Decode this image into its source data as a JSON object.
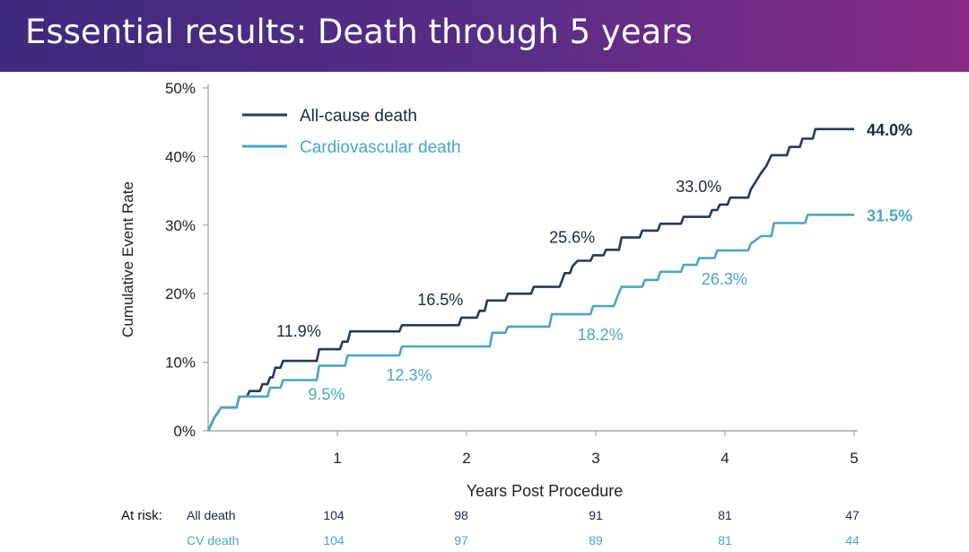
{
  "slide": {
    "title": "Essential results: Death through 5 years"
  },
  "chart_data": {
    "type": "line",
    "step": true,
    "xlabel": "Years Post Procedure",
    "ylabel": "Cumulative Event Rate",
    "xlim": [
      0,
      5
    ],
    "ylim": [
      0,
      50
    ],
    "x_ticks": [
      "1",
      "2",
      "3",
      "4",
      "5"
    ],
    "y_ticks": [
      "0%",
      "10%",
      "20%",
      "30%",
      "40%",
      "50%"
    ],
    "legend_position": "top-left",
    "series": [
      {
        "name": "All-cause death",
        "color": "#243a5e",
        "points": [
          [
            0,
            0
          ],
          [
            0.03,
            1.2
          ],
          [
            0.05,
            2.0
          ],
          [
            0.08,
            2.8
          ],
          [
            0.1,
            3.4
          ],
          [
            0.22,
            3.4
          ],
          [
            0.24,
            5.0
          ],
          [
            0.3,
            5.0
          ],
          [
            0.32,
            5.8
          ],
          [
            0.4,
            5.8
          ],
          [
            0.42,
            6.8
          ],
          [
            0.46,
            6.8
          ],
          [
            0.48,
            7.8
          ],
          [
            0.5,
            7.8
          ],
          [
            0.52,
            9.2
          ],
          [
            0.56,
            9.2
          ],
          [
            0.58,
            10.2
          ],
          [
            0.84,
            10.2
          ],
          [
            0.86,
            11.9
          ],
          [
            1.02,
            11.9
          ],
          [
            1.04,
            13.0
          ],
          [
            1.08,
            13.0
          ],
          [
            1.1,
            14.5
          ],
          [
            1.48,
            14.5
          ],
          [
            1.5,
            15.4
          ],
          [
            1.94,
            15.4
          ],
          [
            1.96,
            16.5
          ],
          [
            2.08,
            16.5
          ],
          [
            2.1,
            17.5
          ],
          [
            2.14,
            17.5
          ],
          [
            2.16,
            19.0
          ],
          [
            2.3,
            19.0
          ],
          [
            2.32,
            20.0
          ],
          [
            2.5,
            20.0
          ],
          [
            2.52,
            21.0
          ],
          [
            2.72,
            21.0
          ],
          [
            2.74,
            22.0
          ],
          [
            2.76,
            23.0
          ],
          [
            2.8,
            23.0
          ],
          [
            2.82,
            24.0
          ],
          [
            2.86,
            24.8
          ],
          [
            2.96,
            24.8
          ],
          [
            2.98,
            25.6
          ],
          [
            3.06,
            25.6
          ],
          [
            3.08,
            26.4
          ],
          [
            3.18,
            26.4
          ],
          [
            3.2,
            28.2
          ],
          [
            3.34,
            28.2
          ],
          [
            3.36,
            29.2
          ],
          [
            3.48,
            29.2
          ],
          [
            3.5,
            30.2
          ],
          [
            3.66,
            30.2
          ],
          [
            3.68,
            31.2
          ],
          [
            3.88,
            31.2
          ],
          [
            3.9,
            32.2
          ],
          [
            3.94,
            32.2
          ],
          [
            3.96,
            33.0
          ],
          [
            4.02,
            33.0
          ],
          [
            4.04,
            34.0
          ],
          [
            4.18,
            34.0
          ],
          [
            4.2,
            35.2
          ],
          [
            4.24,
            36.4
          ],
          [
            4.28,
            37.6
          ],
          [
            4.32,
            38.6
          ],
          [
            4.36,
            40.2
          ],
          [
            4.48,
            40.2
          ],
          [
            4.5,
            41.4
          ],
          [
            4.58,
            41.4
          ],
          [
            4.6,
            42.6
          ],
          [
            4.68,
            42.6
          ],
          [
            4.7,
            44.0
          ],
          [
            5,
            44.0
          ]
        ]
      },
      {
        "name": "Cardiovascular death",
        "color": "#4aa7c6",
        "points": [
          [
            0,
            0
          ],
          [
            0.03,
            1.2
          ],
          [
            0.05,
            2.0
          ],
          [
            0.08,
            2.8
          ],
          [
            0.1,
            3.4
          ],
          [
            0.22,
            3.4
          ],
          [
            0.24,
            5.0
          ],
          [
            0.46,
            5.0
          ],
          [
            0.48,
            6.3
          ],
          [
            0.56,
            6.3
          ],
          [
            0.58,
            7.4
          ],
          [
            0.84,
            7.4
          ],
          [
            0.86,
            9.5
          ],
          [
            1.06,
            9.5
          ],
          [
            1.08,
            11.0
          ],
          [
            1.48,
            11.0
          ],
          [
            1.5,
            12.3
          ],
          [
            2.18,
            12.3
          ],
          [
            2.2,
            14.3
          ],
          [
            2.3,
            14.3
          ],
          [
            2.32,
            15.2
          ],
          [
            2.64,
            15.2
          ],
          [
            2.66,
            17.0
          ],
          [
            2.96,
            17.0
          ],
          [
            2.98,
            18.2
          ],
          [
            3.14,
            18.2
          ],
          [
            3.16,
            19.2
          ],
          [
            3.2,
            21.0
          ],
          [
            3.36,
            21.0
          ],
          [
            3.38,
            22.0
          ],
          [
            3.48,
            22.0
          ],
          [
            3.5,
            23.2
          ],
          [
            3.66,
            23.2
          ],
          [
            3.68,
            24.2
          ],
          [
            3.78,
            24.2
          ],
          [
            3.8,
            25.2
          ],
          [
            3.92,
            25.2
          ],
          [
            3.94,
            26.3
          ],
          [
            4.18,
            26.3
          ],
          [
            4.2,
            27.3
          ],
          [
            4.28,
            28.4
          ],
          [
            4.36,
            28.4
          ],
          [
            4.38,
            30.3
          ],
          [
            4.62,
            30.3
          ],
          [
            4.64,
            31.5
          ],
          [
            5,
            31.5
          ]
        ]
      }
    ],
    "annotations": [
      {
        "text": "11.9%",
        "x": 0.86,
        "y": 11.9,
        "series": 0,
        "ref": "above"
      },
      {
        "text": "16.5%",
        "x": 1.96,
        "y": 16.5,
        "series": 0,
        "ref": "above"
      },
      {
        "text": "25.6%",
        "x": 2.98,
        "y": 25.6,
        "series": 0,
        "ref": "above"
      },
      {
        "text": "33.0%",
        "x": 3.96,
        "y": 33.0,
        "series": 0,
        "ref": "above"
      },
      {
        "text": "44.0%",
        "x": 5.0,
        "y": 44.0,
        "series": 0,
        "ref": "right"
      },
      {
        "text": "9.5%",
        "x": 0.86,
        "y": 9.5,
        "series": 1,
        "ref": "below"
      },
      {
        "text": "12.3%",
        "x": 1.5,
        "y": 12.3,
        "series": 1,
        "ref": "below"
      },
      {
        "text": "18.2%",
        "x": 2.98,
        "y": 18.2,
        "series": 1,
        "ref": "below"
      },
      {
        "text": "26.3%",
        "x": 3.94,
        "y": 26.3,
        "series": 1,
        "ref": "below"
      },
      {
        "text": "31.5%",
        "x": 5.0,
        "y": 31.5,
        "series": 1,
        "ref": "right"
      }
    ]
  },
  "at_risk": {
    "label": "At risk:",
    "rows": [
      {
        "name": "All death",
        "color": "#1a2a44",
        "values": [
          "104",
          "98",
          "91",
          "81",
          "47"
        ]
      },
      {
        "name": "CV death",
        "color": "#4aa7c6",
        "values": [
          "104",
          "97",
          "89",
          "81",
          "44"
        ]
      }
    ]
  }
}
